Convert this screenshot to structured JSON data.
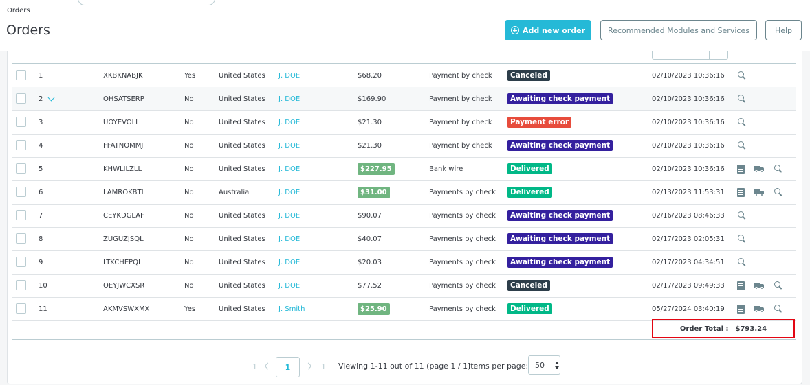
{
  "header": {
    "breadcrumb": "Orders",
    "title": "Orders",
    "add_order_label": "Add new order",
    "modules_label": "Recommended Modules and Services",
    "help_label": "Help"
  },
  "orders": [
    {
      "id": "1",
      "reference": "XKBKNABJK",
      "new_client": "Yes",
      "country": "United States",
      "customer": "J. DOE",
      "total": "$68.20",
      "total_badge": false,
      "payment": "Payment by check",
      "status": "Canceled",
      "status_color": "#2d3e4a",
      "date": "02/10/2023 10:36:16",
      "actions": [
        "zoom"
      ],
      "expandable": false
    },
    {
      "id": "2",
      "reference": "OHSATSERP",
      "new_client": "No",
      "country": "United States",
      "customer": "J. DOE",
      "total": "$169.90",
      "total_badge": false,
      "payment": "Payment by check",
      "status": "Awaiting check payment",
      "status_color": "#34209e",
      "date": "02/10/2023 10:36:16",
      "actions": [
        "zoom"
      ],
      "expandable": true
    },
    {
      "id": "3",
      "reference": "UOYEVOLI",
      "new_client": "No",
      "country": "United States",
      "customer": "J. DOE",
      "total": "$21.30",
      "total_badge": false,
      "payment": "Payment by check",
      "status": "Payment error",
      "status_color": "#e74c3c",
      "date": "02/10/2023 10:36:16",
      "actions": [
        "zoom"
      ],
      "expandable": false
    },
    {
      "id": "4",
      "reference": "FFATNOMMJ",
      "new_client": "No",
      "country": "United States",
      "customer": "J. DOE",
      "total": "$21.30",
      "total_badge": false,
      "payment": "Payment by check",
      "status": "Awaiting check payment",
      "status_color": "#34209e",
      "date": "02/10/2023 10:36:16",
      "actions": [
        "zoom"
      ],
      "expandable": false
    },
    {
      "id": "5",
      "reference": "KHWLILZLL",
      "new_client": "No",
      "country": "United States",
      "customer": "J. DOE",
      "total": "$227.95",
      "total_badge": true,
      "payment": "Bank wire",
      "status": "Delivered",
      "status_color": "#01b887",
      "date": "02/10/2023 10:36:16",
      "actions": [
        "invoice",
        "delivery",
        "zoom"
      ],
      "expandable": false
    },
    {
      "id": "6",
      "reference": "LAMROKBTL",
      "new_client": "No",
      "country": "Australia",
      "customer": "J. DOE",
      "total": "$31.00",
      "total_badge": true,
      "payment": "Payments by check",
      "status": "Delivered",
      "status_color": "#01b887",
      "date": "02/13/2023 11:53:31",
      "actions": [
        "invoice",
        "delivery",
        "zoom"
      ],
      "expandable": false
    },
    {
      "id": "7",
      "reference": "CEYKDGLAF",
      "new_client": "No",
      "country": "United States",
      "customer": "J. DOE",
      "total": "$90.07",
      "total_badge": false,
      "payment": "Payments by check",
      "status": "Awaiting check payment",
      "status_color": "#34209e",
      "date": "02/16/2023 08:46:33",
      "actions": [
        "zoom"
      ],
      "expandable": false
    },
    {
      "id": "8",
      "reference": "ZUGUZJSQL",
      "new_client": "No",
      "country": "United States",
      "customer": "J. DOE",
      "total": "$40.07",
      "total_badge": false,
      "payment": "Payments by check",
      "status": "Awaiting check payment",
      "status_color": "#34209e",
      "date": "02/17/2023 02:05:31",
      "actions": [
        "zoom"
      ],
      "expandable": false
    },
    {
      "id": "9",
      "reference": "LTKCHEPQL",
      "new_client": "No",
      "country": "United States",
      "customer": "J. DOE",
      "total": "$20.03",
      "total_badge": false,
      "payment": "Payments by check",
      "status": "Awaiting check payment",
      "status_color": "#34209e",
      "date": "02/17/2023 04:34:51",
      "actions": [
        "zoom"
      ],
      "expandable": false
    },
    {
      "id": "10",
      "reference": "OEYJWCXSR",
      "new_client": "No",
      "country": "United States",
      "customer": "J. DOE",
      "total": "$77.52",
      "total_badge": false,
      "payment": "Payments by check",
      "status": "Canceled",
      "status_color": "#2d3e4a",
      "date": "02/17/2023 09:49:33",
      "actions": [
        "invoice",
        "delivery",
        "zoom"
      ],
      "expandable": false
    },
    {
      "id": "11",
      "reference": "AKMVSWXMX",
      "new_client": "Yes",
      "country": "United States",
      "customer": "J. Smith",
      "total": "$25.90",
      "total_badge": true,
      "payment": "Payments by check",
      "status": "Delivered",
      "status_color": "#01b887",
      "date": "05/27/2024 03:40:19",
      "actions": [
        "invoice",
        "delivery",
        "zoom"
      ],
      "expandable": false
    }
  ],
  "summary": {
    "order_total_label": "Order Total :",
    "order_total_value": "$793.24"
  },
  "pagination": {
    "first": "1",
    "current": "1",
    "last": "1",
    "viewing": "Viewing 1-11 out of 11 (page 1 / 1)",
    "items_per_page_label": "Items per page:",
    "items_per_page_value": "50"
  },
  "colors": {
    "accent": "#25b9d7",
    "total_badge": "#70b580",
    "highlight_border": "#e30613"
  }
}
